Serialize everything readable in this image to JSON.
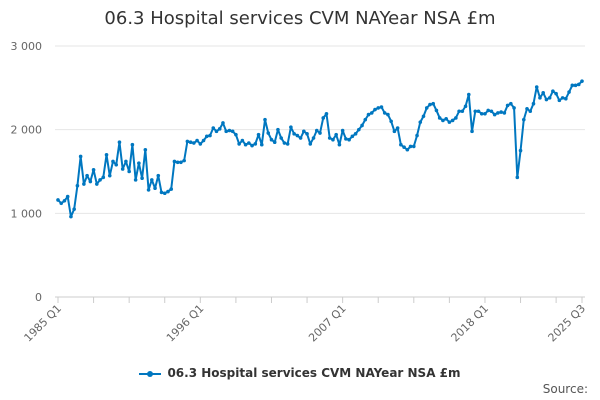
{
  "chart_data": {
    "type": "line",
    "title": "06.3 Hospital services CVM NAYear NSA £m",
    "xlabel": "",
    "ylabel": "",
    "ylim": [
      0,
      3000
    ],
    "yticks": [
      0,
      1000,
      2000,
      3000
    ],
    "ytick_labels": [
      "0",
      "1 000",
      "2 000",
      "3 000"
    ],
    "x_start": "1985 Q1",
    "x_end": "2025 Q3",
    "xtick_labels": [
      "1985 Q1",
      "1996 Q1",
      "2007 Q1",
      "2018 Q1",
      "2025 Q3"
    ],
    "grid": "horizontal",
    "legend_position": "bottom",
    "color": "#0077c0",
    "series": [
      {
        "name": "06.3 Hospital services CVM NAYear NSA £m",
        "values": [
          1160,
          1120,
          1150,
          1200,
          960,
          1050,
          1330,
          1680,
          1350,
          1450,
          1380,
          1520,
          1350,
          1400,
          1430,
          1700,
          1450,
          1620,
          1580,
          1850,
          1530,
          1620,
          1500,
          1820,
          1400,
          1600,
          1420,
          1760,
          1280,
          1400,
          1300,
          1450,
          1250,
          1240,
          1260,
          1290,
          1620,
          1610,
          1610,
          1630,
          1860,
          1850,
          1840,
          1870,
          1830,
          1870,
          1920,
          1930,
          2020,
          1980,
          2010,
          2080,
          1980,
          1990,
          1980,
          1940,
          1830,
          1870,
          1820,
          1840,
          1810,
          1830,
          1940,
          1820,
          2120,
          1960,
          1880,
          1850,
          2000,
          1900,
          1840,
          1830,
          2030,
          1950,
          1930,
          1900,
          1980,
          1950,
          1830,
          1900,
          1990,
          1960,
          2140,
          2190,
          1900,
          1880,
          1940,
          1820,
          1990,
          1890,
          1880,
          1920,
          1950,
          2000,
          2050,
          2120,
          2180,
          2200,
          2240,
          2260,
          2270,
          2200,
          2180,
          2100,
          1980,
          2020,
          1820,
          1790,
          1760,
          1800,
          1800,
          1930,
          2090,
          2160,
          2260,
          2300,
          2310,
          2230,
          2140,
          2110,
          2130,
          2090,
          2110,
          2140,
          2220,
          2220,
          2280,
          2420,
          1980,
          2220,
          2220,
          2190,
          2190,
          2230,
          2220,
          2180,
          2200,
          2210,
          2200,
          2290,
          2310,
          2260,
          1430,
          1750,
          2120,
          2250,
          2220,
          2310,
          2510,
          2380,
          2440,
          2360,
          2380,
          2460,
          2430,
          2350,
          2380,
          2370,
          2450,
          2530,
          2530,
          2540,
          2580
        ]
      }
    ]
  },
  "source_label": "Source:"
}
